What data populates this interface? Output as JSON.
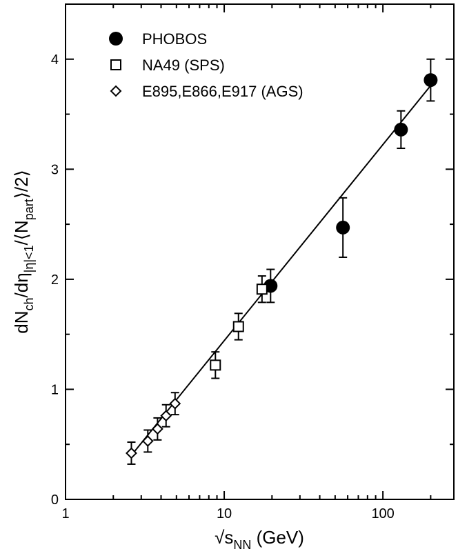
{
  "chart_data": {
    "type": "scatter",
    "x_scale": "log",
    "xlim": [
      1,
      280
    ],
    "ylim": [
      0,
      4.5
    ],
    "x_ticks": [
      1,
      10,
      100
    ],
    "x_tick_labels": [
      "1",
      "10",
      "100"
    ],
    "y_ticks": [
      0,
      1,
      2,
      3,
      4
    ],
    "y_tick_labels": [
      "0",
      "1",
      "2",
      "3",
      "4"
    ],
    "xlabel": {
      "root": "√",
      "s": "s",
      "sub": "NN",
      "unit": " (GeV)"
    },
    "ylabel": {
      "p1": "dN",
      "s1": "ch",
      "p2": "/dη",
      "s2": "|η|<1",
      "p3": "/⟨N",
      "s3": "part",
      "p4": "⟩/2⟩"
    },
    "fit_line": {
      "x": [
        2.6,
        200
      ],
      "y": [
        0.4,
        3.76
      ]
    },
    "series": [
      {
        "name": "PHOBOS",
        "marker": "circle-filled",
        "points": [
          {
            "x": 19.6,
            "y": 1.94,
            "err": 0.15
          },
          {
            "x": 56,
            "y": 2.47,
            "err": 0.27
          },
          {
            "x": 130,
            "y": 3.36,
            "err": 0.17
          },
          {
            "x": 200,
            "y": 3.81,
            "err": 0.19
          }
        ]
      },
      {
        "name": "NA49 (SPS)",
        "marker": "square-open",
        "points": [
          {
            "x": 8.8,
            "y": 1.22,
            "err": 0.12
          },
          {
            "x": 12.3,
            "y": 1.57,
            "err": 0.12
          },
          {
            "x": 17.3,
            "y": 1.91,
            "err": 0.12
          }
        ]
      },
      {
        "name": "E895,E866,E917 (AGS)",
        "marker": "diamond-open",
        "points": [
          {
            "x": 2.6,
            "y": 0.42,
            "err": 0.1
          },
          {
            "x": 3.3,
            "y": 0.53,
            "err": 0.1
          },
          {
            "x": 3.8,
            "y": 0.64,
            "err": 0.1
          },
          {
            "x": 4.3,
            "y": 0.76,
            "err": 0.1
          },
          {
            "x": 4.9,
            "y": 0.87,
            "err": 0.1
          }
        ]
      }
    ]
  }
}
